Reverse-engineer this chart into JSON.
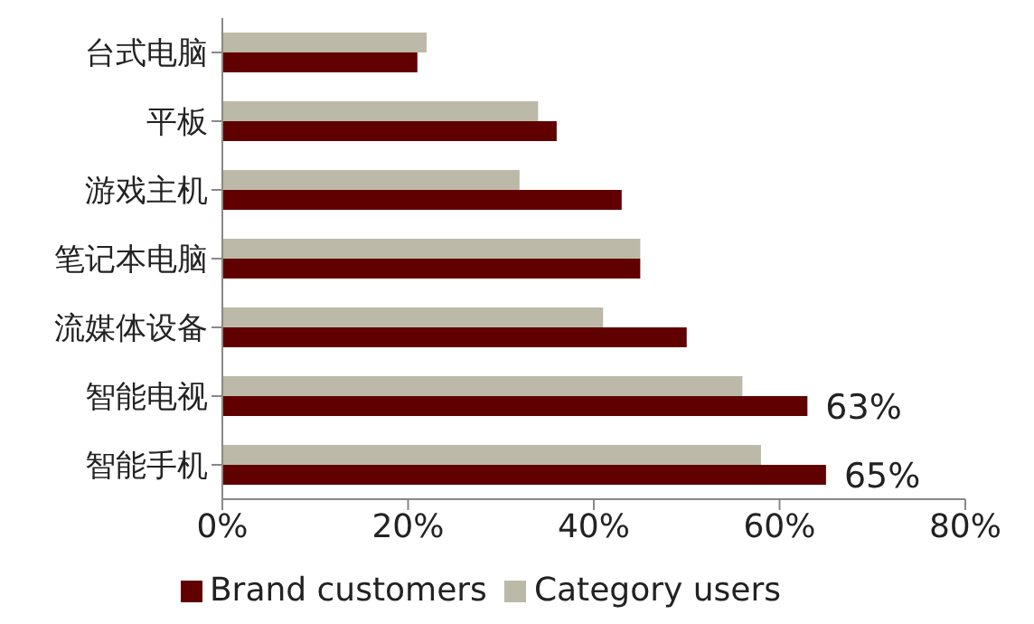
{
  "chart_data": {
    "type": "bar",
    "orientation": "horizontal",
    "categories": [
      "台式电脑",
      "平板",
      "游戏主机",
      "笔记本电脑",
      "流媒体设备",
      "智能电视",
      "智能手机"
    ],
    "series": [
      {
        "name": "Category users",
        "color": "#bcb9a8",
        "values": [
          22,
          34,
          32,
          45,
          41,
          56,
          58
        ]
      },
      {
        "name": "Brand customers",
        "color": "#600000",
        "values": [
          21,
          36,
          43,
          45,
          50,
          63,
          65
        ],
        "value_labels": [
          null,
          null,
          null,
          null,
          null,
          "63%",
          "65%"
        ]
      }
    ],
    "xlim": [
      0,
      80
    ],
    "xticks": [
      {
        "value": 0,
        "label": "0%"
      },
      {
        "value": 20,
        "label": "20%"
      },
      {
        "value": 40,
        "label": "40%"
      },
      {
        "value": 60,
        "label": "60%"
      },
      {
        "value": 80,
        "label": "80%"
      }
    ],
    "grid": false,
    "legend": "bottom"
  }
}
